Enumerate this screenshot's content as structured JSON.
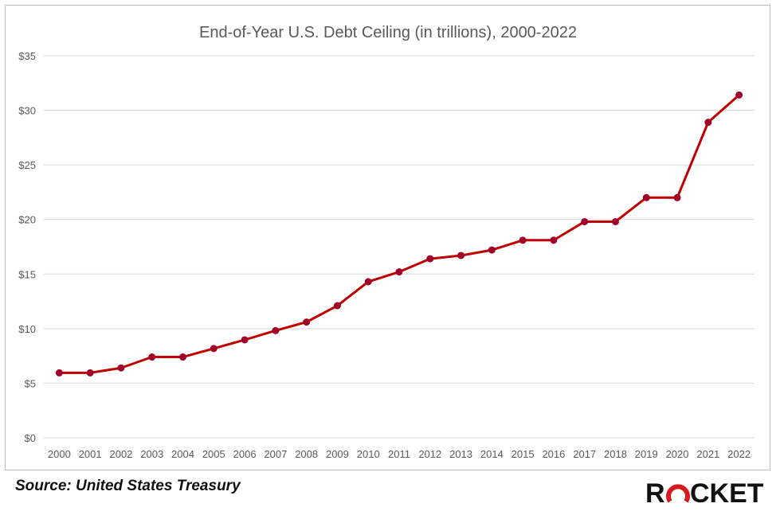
{
  "chart_data": {
    "type": "line",
    "title": "End-of-Year U.S. Debt Ceiling (in trillions), 2000-2022",
    "xlabel": "",
    "ylabel": "",
    "categories": [
      "2000",
      "2001",
      "2002",
      "2003",
      "2004",
      "2005",
      "2006",
      "2007",
      "2008",
      "2009",
      "2010",
      "2011",
      "2012",
      "2013",
      "2014",
      "2015",
      "2016",
      "2017",
      "2018",
      "2019",
      "2020",
      "2021",
      "2022"
    ],
    "series": [
      {
        "values": [
          5.95,
          5.95,
          6.4,
          7.4,
          7.4,
          8.18,
          8.97,
          9.82,
          10.6,
          12.1,
          14.3,
          15.2,
          16.4,
          16.7,
          17.2,
          18.1,
          18.1,
          19.8,
          19.8,
          22.0,
          22.0,
          28.9,
          31.4
        ]
      }
    ],
    "ylim": [
      0,
      35
    ],
    "yticks": [
      0,
      5,
      10,
      15,
      20,
      25,
      30,
      35
    ],
    "ytick_labels": [
      "$0",
      "$5",
      "$10",
      "$15",
      "$20",
      "$25",
      "$30",
      "$35"
    ],
    "grid": "horizontal",
    "legend": "none",
    "colors": {
      "line": "#c00000",
      "marker": "#a0002a",
      "grid": "#d9d9d9",
      "text": "#595959"
    }
  },
  "footer": {
    "source": "Source: United States Treasury",
    "logo_text": "ROCKET"
  }
}
